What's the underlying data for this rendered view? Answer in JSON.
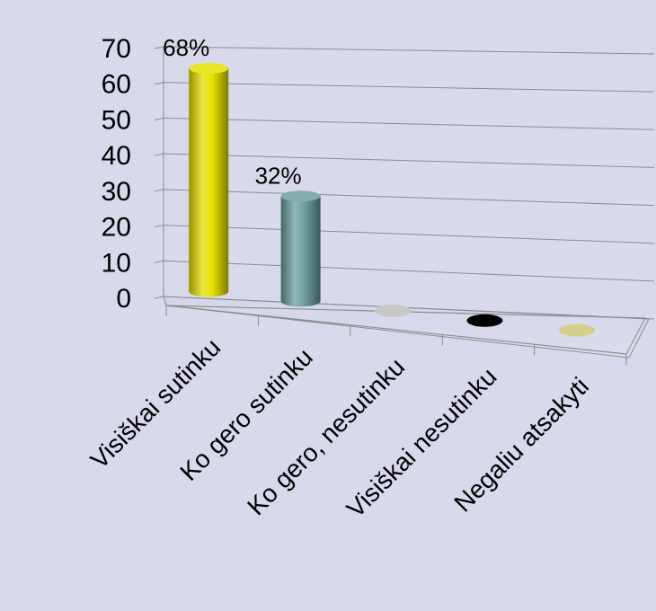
{
  "chart_data": {
    "type": "bar",
    "style": "3d-cylinder",
    "categories": [
      "Visiškai sutinku",
      "Ko gero sutinku",
      "Ko gero, nesutinku",
      "Visiškai nesutinku",
      "Negaliu atsakyti"
    ],
    "values": [
      68,
      32,
      0,
      0,
      0
    ],
    "data_labels": [
      "68%",
      "32%",
      "",
      "",
      ""
    ],
    "colors": [
      "#e6e000",
      "#6e9e9e",
      "#c8c8c8",
      "#000000",
      "#d4d08a"
    ],
    "ylim": [
      0,
      70
    ],
    "yticks": [
      "0",
      "10",
      "20",
      "30",
      "40",
      "50",
      "60",
      "70"
    ],
    "grid": true,
    "legend": "none"
  }
}
